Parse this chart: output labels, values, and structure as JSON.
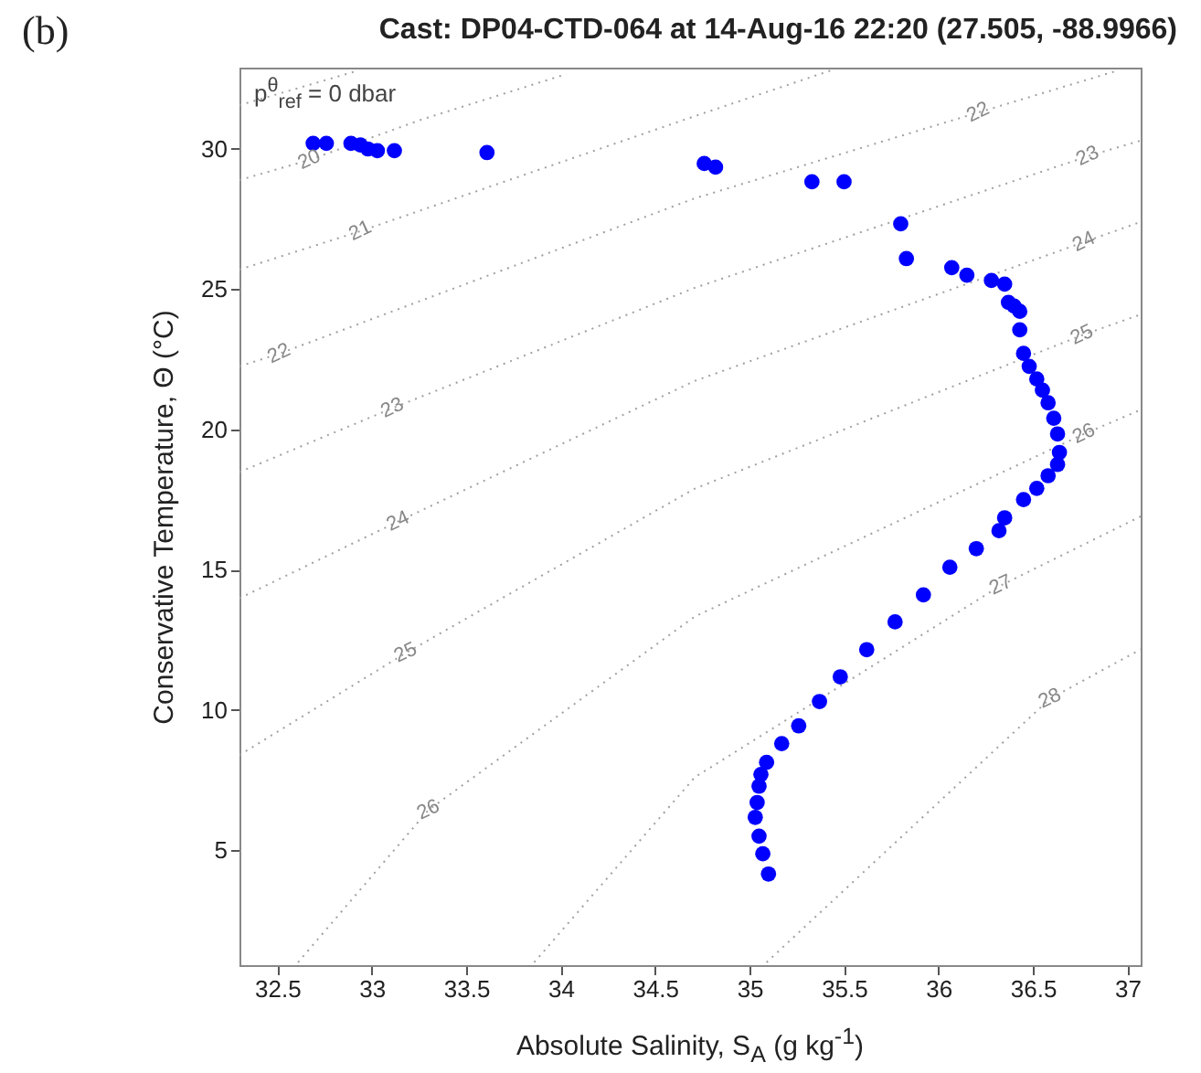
{
  "chart_data": {
    "type": "scatter",
    "title": "Cast: DP04-CTD-064 at  14-Aug-16 22:20   (27.505, -88.9966)",
    "xlabel": "Absolute Salinity, S$_{A}$ (g kg$^{-1}$)",
    "ylabel": "Conservative Temperature, Θ (°C)",
    "xlim": [
      32.3,
      37.07
    ],
    "ylim": [
      0.9,
      32.9
    ],
    "xticks": [
      32.5,
      33,
      33.5,
      34,
      34.5,
      35,
      35.5,
      36,
      36.5,
      37
    ],
    "yticks": [
      5,
      10,
      15,
      20,
      25,
      30
    ],
    "grid": false,
    "annotations": [
      "(b)",
      "p$^{θ}$$_{ref}$ = 0 dbar",
      {
        "text": "20",
        "x": 32.67,
        "y": 29.61
      },
      {
        "text": "21",
        "x": 32.94,
        "y": 27.07
      },
      {
        "text": "22",
        "x": 32.51,
        "y": 22.7
      },
      {
        "text": "22",
        "x": 36.21,
        "y": 31.3
      },
      {
        "text": "23",
        "x": 33.11,
        "y": 20.76
      },
      {
        "text": "23",
        "x": 36.79,
        "y": 29.74
      },
      {
        "text": "24",
        "x": 33.14,
        "y": 16.72
      },
      {
        "text": "24",
        "x": 36.77,
        "y": 26.68
      },
      {
        "text": "25",
        "x": 33.18,
        "y": 12.03
      },
      {
        "text": "25",
        "x": 36.76,
        "y": 23.36
      },
      {
        "text": "26",
        "x": 33.3,
        "y": 6.43
      },
      {
        "text": "26",
        "x": 36.77,
        "y": 19.84
      },
      {
        "text": "27",
        "x": 36.33,
        "y": 14.44
      },
      {
        "text": "28",
        "x": 36.59,
        "y": 10.4
      }
    ],
    "series": [
      {
        "type": "line",
        "color": "#a0a0a0",
        "line_style": "dotted",
        "x": [
          32.3,
          32.93
        ],
        "values": [
          31.56,
          32.8
        ]
      },
      {
        "type": "line",
        "color": "#a0a0a0",
        "line_style": "dotted",
        "x": [
          32.3,
          32.67,
          33.26,
          34.03
        ],
        "values": [
          28.89,
          29.61,
          31.04,
          32.67
        ]
      },
      {
        "type": "line",
        "color": "#a0a0a0",
        "line_style": "dotted",
        "x": [
          32.3,
          32.94,
          34.71,
          35.43
        ],
        "values": [
          25.7,
          27.07,
          31.17,
          32.8
        ]
      },
      {
        "type": "line",
        "color": "#a0a0a0",
        "line_style": "dotted",
        "x": [
          32.3,
          32.51,
          34.71,
          36.21,
          36.95
        ],
        "values": [
          22.25,
          22.7,
          28.24,
          31.3,
          32.8
        ]
      },
      {
        "type": "line",
        "color": "#a0a0a0",
        "line_style": "dotted",
        "x": [
          32.3,
          33.11,
          34.71,
          36.79,
          37.07
        ],
        "values": [
          18.48,
          20.76,
          25.05,
          29.74,
          30.3
        ]
      },
      {
        "type": "line",
        "color": "#a0a0a0",
        "line_style": "dotted",
        "x": [
          32.3,
          33.14,
          34.71,
          36.77,
          37.07
        ],
        "values": [
          13.98,
          16.72,
          21.73,
          26.68,
          27.4
        ]
      },
      {
        "type": "line",
        "color": "#a0a0a0",
        "line_style": "dotted",
        "x": [
          32.3,
          33.18,
          34.71,
          36.76,
          37.07
        ],
        "values": [
          8.39,
          12.03,
          17.89,
          23.36,
          24.1
        ]
      },
      {
        "type": "line",
        "color": "#a0a0a0",
        "line_style": "dotted",
        "x": [
          32.61,
          33.3,
          34.71,
          36.77,
          37.07
        ],
        "values": [
          1.0,
          6.43,
          13.33,
          19.84,
          20.7
        ]
      },
      {
        "type": "line",
        "color": "#a0a0a0",
        "line_style": "dotted",
        "x": [
          33.86,
          34.71,
          36.33,
          37.07
        ],
        "values": [
          1.0,
          7.6,
          14.44,
          16.9
        ]
      },
      {
        "type": "line",
        "color": "#a0a0a0",
        "line_style": "dotted",
        "x": [
          35.09,
          36.59,
          37.07
        ],
        "values": [
          1.0,
          10.4,
          12.16
        ]
      },
      {
        "color": "#0000ff",
        "marker": "circle",
        "x": [
          32.69,
          32.76,
          32.89,
          32.94,
          32.98,
          33.03,
          33.12,
          33.61,
          34.76,
          34.82,
          35.33,
          35.5,
          35.8,
          35.83,
          36.07,
          36.15,
          36.28,
          36.35,
          36.37,
          36.4,
          36.43,
          36.43,
          36.45,
          36.48,
          36.52,
          36.55,
          36.58,
          36.61,
          36.63,
          36.64,
          36.63,
          36.58,
          36.52,
          36.45,
          36.35,
          36.32,
          36.2,
          36.06,
          35.92,
          35.77,
          35.62,
          35.48,
          35.37,
          35.26,
          35.17,
          35.09,
          35.06,
          35.05,
          35.04,
          35.03,
          35.05,
          35.07,
          35.1
        ],
        "values": [
          30.2,
          30.2,
          30.2,
          30.14,
          30.0,
          29.94,
          29.94,
          29.87,
          29.48,
          29.35,
          28.83,
          28.83,
          27.33,
          26.09,
          25.77,
          25.5,
          25.31,
          25.18,
          24.53,
          24.4,
          24.21,
          23.55,
          22.71,
          22.25,
          21.8,
          21.4,
          20.95,
          20.4,
          19.84,
          19.18,
          18.75,
          18.35,
          17.9,
          17.5,
          16.85,
          16.39,
          15.75,
          15.09,
          14.1,
          13.14,
          12.15,
          11.18,
          10.3,
          9.43,
          8.8,
          8.13,
          7.7,
          7.28,
          6.7,
          6.17,
          5.5,
          4.87,
          4.15
        ]
      }
    ]
  }
}
